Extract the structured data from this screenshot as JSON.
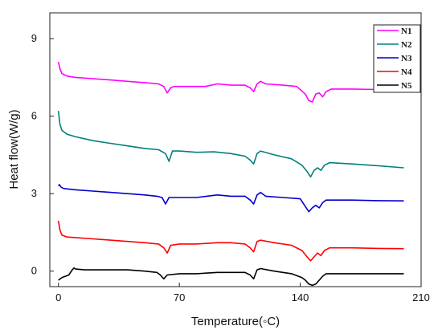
{
  "chart_data": {
    "type": "line",
    "title": "",
    "xlabel": "Temperature(◦C)",
    "ylabel": "Heat flow(W/g)",
    "xlim": [
      -5,
      210
    ],
    "ylim": [
      -0.6,
      10
    ],
    "xticks": [
      0,
      70,
      140,
      210
    ],
    "yticks": [
      0,
      3,
      6,
      9
    ],
    "grid": false,
    "legend_position": "top-right",
    "series": [
      {
        "name": "N1",
        "color": "#ff00ff",
        "points": [
          [
            0,
            8.1
          ],
          [
            0.8,
            7.85
          ],
          [
            2,
            7.65
          ],
          [
            5,
            7.55
          ],
          [
            10,
            7.5
          ],
          [
            20,
            7.45
          ],
          [
            30,
            7.4
          ],
          [
            40,
            7.35
          ],
          [
            50,
            7.3
          ],
          [
            58,
            7.25
          ],
          [
            61,
            7.15
          ],
          [
            63,
            6.9
          ],
          [
            65,
            7.1
          ],
          [
            67,
            7.15
          ],
          [
            75,
            7.15
          ],
          [
            85,
            7.15
          ],
          [
            92,
            7.25
          ],
          [
            100,
            7.2
          ],
          [
            108,
            7.2
          ],
          [
            111,
            7.1
          ],
          [
            113,
            6.95
          ],
          [
            115,
            7.25
          ],
          [
            117,
            7.35
          ],
          [
            120,
            7.25
          ],
          [
            130,
            7.2
          ],
          [
            138,
            7.15
          ],
          [
            143,
            6.85
          ],
          [
            145,
            6.6
          ],
          [
            147,
            6.55
          ],
          [
            149,
            6.85
          ],
          [
            151,
            6.9
          ],
          [
            153,
            6.75
          ],
          [
            155,
            6.95
          ],
          [
            158,
            7.05
          ],
          [
            170,
            7.05
          ],
          [
            185,
            7.03
          ],
          [
            200,
            7.0
          ]
        ]
      },
      {
        "name": "N2",
        "color": "#008080",
        "points": [
          [
            0,
            6.2
          ],
          [
            0.8,
            5.7
          ],
          [
            2,
            5.45
          ],
          [
            5,
            5.3
          ],
          [
            10,
            5.2
          ],
          [
            20,
            5.05
          ],
          [
            30,
            4.95
          ],
          [
            40,
            4.85
          ],
          [
            50,
            4.75
          ],
          [
            58,
            4.7
          ],
          [
            62,
            4.55
          ],
          [
            64,
            4.25
          ],
          [
            66,
            4.65
          ],
          [
            70,
            4.65
          ],
          [
            80,
            4.6
          ],
          [
            90,
            4.62
          ],
          [
            100,
            4.55
          ],
          [
            108,
            4.45
          ],
          [
            111,
            4.3
          ],
          [
            113,
            4.15
          ],
          [
            115,
            4.55
          ],
          [
            117,
            4.65
          ],
          [
            125,
            4.5
          ],
          [
            135,
            4.35
          ],
          [
            141,
            4.1
          ],
          [
            144,
            3.85
          ],
          [
            146,
            3.65
          ],
          [
            148,
            3.9
          ],
          [
            150,
            4.0
          ],
          [
            152,
            3.9
          ],
          [
            154,
            4.1
          ],
          [
            157,
            4.2
          ],
          [
            170,
            4.15
          ],
          [
            185,
            4.08
          ],
          [
            200,
            4.0
          ]
        ]
      },
      {
        "name": "N3",
        "color": "#0000cc",
        "points": [
          [
            0,
            3.3
          ],
          [
            0.5,
            3.35
          ],
          [
            1.5,
            3.25
          ],
          [
            3,
            3.2
          ],
          [
            10,
            3.15
          ],
          [
            20,
            3.1
          ],
          [
            30,
            3.05
          ],
          [
            40,
            3.0
          ],
          [
            50,
            2.95
          ],
          [
            57,
            2.9
          ],
          [
            60,
            2.85
          ],
          [
            62,
            2.6
          ],
          [
            64,
            2.85
          ],
          [
            70,
            2.85
          ],
          [
            80,
            2.85
          ],
          [
            92,
            2.95
          ],
          [
            100,
            2.9
          ],
          [
            108,
            2.9
          ],
          [
            111,
            2.75
          ],
          [
            113,
            2.6
          ],
          [
            115,
            2.95
          ],
          [
            117,
            3.05
          ],
          [
            120,
            2.9
          ],
          [
            130,
            2.85
          ],
          [
            140,
            2.8
          ],
          [
            143,
            2.5
          ],
          [
            145,
            2.3
          ],
          [
            147,
            2.45
          ],
          [
            149,
            2.55
          ],
          [
            151,
            2.45
          ],
          [
            153,
            2.65
          ],
          [
            155,
            2.75
          ],
          [
            170,
            2.75
          ],
          [
            185,
            2.73
          ],
          [
            200,
            2.72
          ]
        ]
      },
      {
        "name": "N4",
        "color": "#ff0000",
        "points": [
          [
            0,
            1.95
          ],
          [
            0.8,
            1.6
          ],
          [
            2,
            1.4
          ],
          [
            5,
            1.32
          ],
          [
            10,
            1.3
          ],
          [
            20,
            1.25
          ],
          [
            30,
            1.2
          ],
          [
            40,
            1.15
          ],
          [
            50,
            1.1
          ],
          [
            58,
            1.05
          ],
          [
            61,
            0.9
          ],
          [
            63,
            0.7
          ],
          [
            65,
            1.0
          ],
          [
            70,
            1.05
          ],
          [
            80,
            1.05
          ],
          [
            92,
            1.1
          ],
          [
            100,
            1.1
          ],
          [
            108,
            1.05
          ],
          [
            111,
            0.9
          ],
          [
            113,
            0.75
          ],
          [
            115,
            1.15
          ],
          [
            117,
            1.2
          ],
          [
            125,
            1.1
          ],
          [
            135,
            1.0
          ],
          [
            141,
            0.8
          ],
          [
            144,
            0.55
          ],
          [
            146,
            0.4
          ],
          [
            148,
            0.55
          ],
          [
            150,
            0.7
          ],
          [
            152,
            0.6
          ],
          [
            154,
            0.8
          ],
          [
            157,
            0.9
          ],
          [
            170,
            0.9
          ],
          [
            185,
            0.88
          ],
          [
            200,
            0.87
          ]
        ]
      },
      {
        "name": "N5",
        "color": "#000000",
        "points": [
          [
            0,
            -0.35
          ],
          [
            2,
            -0.25
          ],
          [
            4,
            -0.2
          ],
          [
            6,
            -0.15
          ],
          [
            8,
            0.05
          ],
          [
            9,
            0.12
          ],
          [
            10,
            0.08
          ],
          [
            15,
            0.05
          ],
          [
            25,
            0.05
          ],
          [
            40,
            0.05
          ],
          [
            50,
            0.0
          ],
          [
            57,
            -0.05
          ],
          [
            59,
            -0.15
          ],
          [
            61,
            -0.3
          ],
          [
            63,
            -0.15
          ],
          [
            70,
            -0.1
          ],
          [
            80,
            -0.1
          ],
          [
            92,
            -0.05
          ],
          [
            100,
            -0.05
          ],
          [
            108,
            -0.05
          ],
          [
            111,
            -0.15
          ],
          [
            113,
            -0.3
          ],
          [
            115,
            0.05
          ],
          [
            117,
            0.1
          ],
          [
            125,
            0.0
          ],
          [
            135,
            -0.1
          ],
          [
            141,
            -0.25
          ],
          [
            143,
            -0.35
          ],
          [
            145,
            -0.5
          ],
          [
            147,
            -0.55
          ],
          [
            149,
            -0.5
          ],
          [
            151,
            -0.35
          ],
          [
            153,
            -0.2
          ],
          [
            155,
            -0.1
          ],
          [
            170,
            -0.1
          ],
          [
            185,
            -0.1
          ],
          [
            200,
            -0.1
          ]
        ]
      }
    ]
  }
}
